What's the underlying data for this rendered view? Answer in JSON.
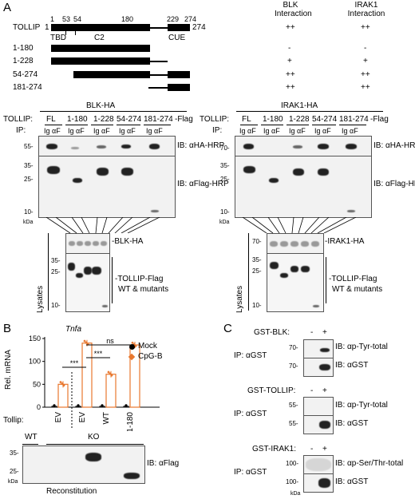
{
  "panelA": {
    "label": "A",
    "header_blk": "BLK",
    "header_blk2": "Interaction",
    "header_irak1": "IRAK1",
    "header_irak1_2": "Interaction",
    "tollip_name": "TOLLIP",
    "tollip_start": "1",
    "tollip_end": "274",
    "positions": [
      "1",
      "53",
      "54",
      "180",
      "229",
      "274"
    ],
    "domains": [
      "TBD",
      "C2",
      "CUE"
    ],
    "constructs": [
      {
        "name": "1-180",
        "blk": "-",
        "irak": "-"
      },
      {
        "name": "1-228",
        "blk": "+",
        "irak": "+"
      },
      {
        "name": "54-274",
        "blk": "++",
        "irak": "++"
      },
      {
        "name": "181-274",
        "blk": "++",
        "irak": "++"
      }
    ],
    "fl_blk": "++",
    "fl_irak": "++",
    "left_title": "BLK-HA",
    "right_title": "IRAK1-HA",
    "tollip_row": "TOLLIP:",
    "ip_row": "IP:",
    "lane_groups": [
      "FL",
      "1-180",
      "1-228",
      "54-274",
      "181-274"
    ],
    "lane_suffix": "-Flag",
    "lane_pair": "Ig αF",
    "ib_ha": "IB: αHA-HRP",
    "ib_flag": "IB: αFlag-HRP",
    "kda": "kDa",
    "lysates": "Lysates",
    "lys_blk": "-BLK-HA",
    "lys_irak": "-IRAK1-HA",
    "lys_tollip1": "-TOLLIP-Flag",
    "lys_tollip2": "WT & mutants",
    "mw_left_ip": [
      "55-",
      "35-",
      "25-",
      "10-"
    ],
    "mw_right_ip": [
      "70-",
      "35-",
      "25-",
      "10-"
    ],
    "mw_left_lys": [
      "35-",
      "25-",
      "10-"
    ],
    "mw_right_lys": [
      "70-",
      "35-",
      "25-",
      "10-"
    ]
  },
  "panelB": {
    "label": "B",
    "gene": "Tnfa",
    "ylabel": "Rel. mRNA",
    "yticks": [
      "150",
      "100",
      "50",
      "0"
    ],
    "ymax": 150,
    "legend": [
      {
        "name": "Mock",
        "color": "#000000"
      },
      {
        "name": "CpG-B",
        "color": "#e8772e"
      }
    ],
    "tollip_label": "Tollip:",
    "groups": [
      "EV",
      "EV",
      "WT",
      "1-180"
    ],
    "mock_values": [
      2,
      2,
      2,
      2
    ],
    "cpg_values": [
      50,
      140,
      72,
      136
    ],
    "sig": [
      "***",
      "***",
      "ns"
    ],
    "wt_label": "WT",
    "ko_label": "KO",
    "ib_flag": "IB: αFlag",
    "mw": [
      "35-",
      "25-"
    ],
    "kda": "kDa",
    "reconstitution": "Reconstitution"
  },
  "panelC": {
    "label": "C",
    "ip": "IP: αGST",
    "kda": "kDa",
    "blocks": [
      {
        "title": "GST-BLK:",
        "minus": "-",
        "plus": "+",
        "ib1": "IB: αp-Tyr-total",
        "ib2": "IB: αGST",
        "mw1": "70-",
        "mw2": "70-"
      },
      {
        "title": "GST-TOLLIP:",
        "minus": "-",
        "plus": "+",
        "ib1": "IB: αp-Tyr-total",
        "ib2": "IB: αGST",
        "mw1": "55-",
        "mw2": "55-"
      },
      {
        "title": "GST-IRAK1:",
        "minus": "-",
        "plus": "+",
        "ib1": "IB: αp-Ser/Thr-total",
        "ib2": "IB: αGST",
        "mw1": "100-",
        "mw2": "100-"
      }
    ]
  }
}
